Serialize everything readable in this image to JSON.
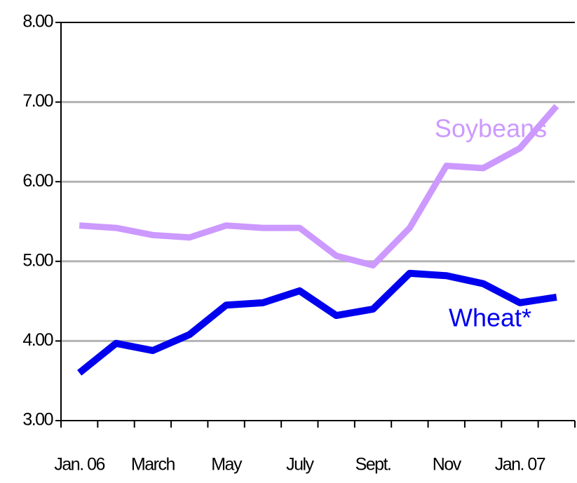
{
  "chart_data": {
    "type": "line",
    "categories": [
      "Jan. 06",
      null,
      "March",
      null,
      "May",
      null,
      "July",
      null,
      "Sept.",
      null,
      "Nov",
      null,
      "Jan. 07",
      null
    ],
    "series": [
      {
        "name": "Soybeans",
        "color": "#cc99ff",
        "values": [
          5.45,
          5.42,
          5.33,
          5.3,
          5.45,
          5.42,
          5.42,
          5.07,
          4.95,
          5.42,
          6.2,
          6.17,
          6.42,
          6.95
        ]
      },
      {
        "name": "Wheat*",
        "color": "#0000ee",
        "values": [
          3.6,
          3.97,
          3.88,
          4.08,
          4.45,
          4.48,
          4.63,
          4.32,
          4.4,
          4.85,
          4.82,
          4.72,
          4.48,
          4.55
        ]
      }
    ],
    "ylim": [
      3,
      8
    ],
    "yticks": [
      {
        "value": 3,
        "label": "3.00"
      },
      {
        "value": 4,
        "label": "4.00"
      },
      {
        "value": 5,
        "label": "5.00"
      },
      {
        "value": 6,
        "label": "6.00"
      },
      {
        "value": 7,
        "label": "7.00"
      },
      {
        "value": 8,
        "label": "8.00"
      }
    ],
    "grid": true
  }
}
